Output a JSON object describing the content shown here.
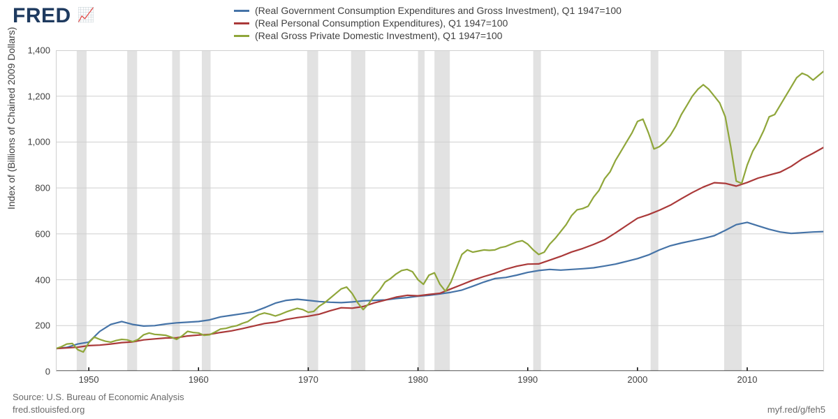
{
  "logo": {
    "text": "FRED",
    "glyph": "📈"
  },
  "legend": {
    "items": [
      {
        "label": "(Real Government Consumption Expenditures and Gross Investment), Q1 1947=100",
        "color": "#4573a7"
      },
      {
        "label": "(Real Personal Consumption Expenditures), Q1 1947=100",
        "color": "#aa3939"
      },
      {
        "label": "(Real Gross Private Domestic Investment), Q1 1947=100",
        "color": "#8fa63a"
      }
    ]
  },
  "chart": {
    "type": "line",
    "background_color": "#ffffff",
    "grid_color": "#cfcfcf",
    "axis_color": "#000000",
    "recession_fill": "#e2e2e2",
    "ylabel": "Index of (Billions of Chained 2009 Dollars)",
    "label_fontsize": 14,
    "tick_fontsize": 13,
    "line_width": 2.2,
    "xlim": [
      1947,
      2017
    ],
    "ylim": [
      0,
      1400
    ],
    "xticks": [
      1950,
      1960,
      1970,
      1980,
      1990,
      2000,
      2010
    ],
    "yticks": [
      0,
      200,
      400,
      600,
      800,
      1000,
      1200,
      1400
    ],
    "ytick_labels": [
      "0",
      "200",
      "400",
      "600",
      "800",
      "1,000",
      "1,200",
      "1,400"
    ],
    "recessions": [
      [
        1948.9,
        1949.8
      ],
      [
        1953.5,
        1954.4
      ],
      [
        1957.6,
        1958.3
      ],
      [
        1960.3,
        1961.1
      ],
      [
        1969.9,
        1970.9
      ],
      [
        1973.9,
        1975.2
      ],
      [
        1980.0,
        1980.6
      ],
      [
        1981.5,
        1982.9
      ],
      [
        1990.5,
        1991.2
      ],
      [
        2001.2,
        2001.9
      ],
      [
        2007.9,
        2009.5
      ]
    ],
    "series": [
      {
        "name": "gov",
        "color": "#4573a7",
        "points": [
          [
            1947,
            100
          ],
          [
            1948,
            105
          ],
          [
            1949,
            120
          ],
          [
            1950,
            128
          ],
          [
            1951,
            175
          ],
          [
            1952,
            205
          ],
          [
            1953,
            218
          ],
          [
            1954,
            205
          ],
          [
            1955,
            198
          ],
          [
            1956,
            200
          ],
          [
            1957,
            207
          ],
          [
            1958,
            212
          ],
          [
            1959,
            215
          ],
          [
            1960,
            218
          ],
          [
            1961,
            225
          ],
          [
            1962,
            238
          ],
          [
            1963,
            245
          ],
          [
            1964,
            252
          ],
          [
            1965,
            260
          ],
          [
            1966,
            278
          ],
          [
            1967,
            298
          ],
          [
            1968,
            310
          ],
          [
            1969,
            315
          ],
          [
            1970,
            310
          ],
          [
            1971,
            305
          ],
          [
            1972,
            302
          ],
          [
            1973,
            300
          ],
          [
            1974,
            303
          ],
          [
            1975,
            308
          ],
          [
            1976,
            310
          ],
          [
            1977,
            312
          ],
          [
            1978,
            318
          ],
          [
            1979,
            322
          ],
          [
            1980,
            328
          ],
          [
            1981,
            332
          ],
          [
            1982,
            338
          ],
          [
            1983,
            345
          ],
          [
            1984,
            355
          ],
          [
            1985,
            372
          ],
          [
            1986,
            390
          ],
          [
            1987,
            405
          ],
          [
            1988,
            410
          ],
          [
            1989,
            420
          ],
          [
            1990,
            432
          ],
          [
            1991,
            440
          ],
          [
            1992,
            445
          ],
          [
            1993,
            442
          ],
          [
            1994,
            445
          ],
          [
            1995,
            448
          ],
          [
            1996,
            452
          ],
          [
            1997,
            460
          ],
          [
            1998,
            468
          ],
          [
            1999,
            480
          ],
          [
            2000,
            492
          ],
          [
            2001,
            508
          ],
          [
            2002,
            530
          ],
          [
            2003,
            548
          ],
          [
            2004,
            560
          ],
          [
            2005,
            570
          ],
          [
            2006,
            580
          ],
          [
            2007,
            592
          ],
          [
            2008,
            615
          ],
          [
            2009,
            640
          ],
          [
            2010,
            650
          ],
          [
            2011,
            635
          ],
          [
            2012,
            620
          ],
          [
            2013,
            608
          ],
          [
            2014,
            602
          ],
          [
            2015,
            605
          ],
          [
            2016,
            608
          ],
          [
            2017,
            610
          ]
        ]
      },
      {
        "name": "pce",
        "color": "#aa3939",
        "points": [
          [
            1947,
            100
          ],
          [
            1948,
            103
          ],
          [
            1949,
            106
          ],
          [
            1950,
            113
          ],
          [
            1951,
            115
          ],
          [
            1952,
            120
          ],
          [
            1953,
            126
          ],
          [
            1954,
            129
          ],
          [
            1955,
            138
          ],
          [
            1956,
            142
          ],
          [
            1957,
            146
          ],
          [
            1958,
            147
          ],
          [
            1959,
            155
          ],
          [
            1960,
            159
          ],
          [
            1961,
            162
          ],
          [
            1962,
            170
          ],
          [
            1963,
            177
          ],
          [
            1964,
            187
          ],
          [
            1965,
            198
          ],
          [
            1966,
            209
          ],
          [
            1967,
            215
          ],
          [
            1968,
            227
          ],
          [
            1969,
            235
          ],
          [
            1970,
            241
          ],
          [
            1971,
            250
          ],
          [
            1972,
            265
          ],
          [
            1973,
            278
          ],
          [
            1974,
            276
          ],
          [
            1975,
            283
          ],
          [
            1976,
            299
          ],
          [
            1977,
            311
          ],
          [
            1978,
            324
          ],
          [
            1979,
            332
          ],
          [
            1980,
            330
          ],
          [
            1981,
            336
          ],
          [
            1982,
            341
          ],
          [
            1983,
            360
          ],
          [
            1984,
            379
          ],
          [
            1985,
            398
          ],
          [
            1986,
            414
          ],
          [
            1987,
            428
          ],
          [
            1988,
            446
          ],
          [
            1989,
            459
          ],
          [
            1990,
            468
          ],
          [
            1991,
            469
          ],
          [
            1992,
            485
          ],
          [
            1993,
            502
          ],
          [
            1994,
            521
          ],
          [
            1995,
            536
          ],
          [
            1996,
            554
          ],
          [
            1997,
            574
          ],
          [
            1998,
            604
          ],
          [
            1999,
            636
          ],
          [
            2000,
            668
          ],
          [
            2001,
            684
          ],
          [
            2002,
            703
          ],
          [
            2003,
            725
          ],
          [
            2004,
            753
          ],
          [
            2005,
            780
          ],
          [
            2006,
            804
          ],
          [
            2007,
            823
          ],
          [
            2008,
            820
          ],
          [
            2009,
            808
          ],
          [
            2010,
            824
          ],
          [
            2011,
            843
          ],
          [
            2012,
            856
          ],
          [
            2013,
            869
          ],
          [
            2014,
            894
          ],
          [
            2015,
            926
          ],
          [
            2016,
            951
          ],
          [
            2017,
            978
          ]
        ]
      },
      {
        "name": "inv",
        "color": "#8fa63a",
        "points": [
          [
            1947,
            100
          ],
          [
            1947.5,
            108
          ],
          [
            1948,
            120
          ],
          [
            1948.5,
            122
          ],
          [
            1949,
            95
          ],
          [
            1949.5,
            85
          ],
          [
            1950,
            125
          ],
          [
            1950.5,
            150
          ],
          [
            1951,
            140
          ],
          [
            1951.5,
            132
          ],
          [
            1952,
            128
          ],
          [
            1952.5,
            135
          ],
          [
            1953,
            140
          ],
          [
            1953.5,
            138
          ],
          [
            1954,
            130
          ],
          [
            1954.5,
            140
          ],
          [
            1955,
            160
          ],
          [
            1955.5,
            168
          ],
          [
            1956,
            162
          ],
          [
            1956.5,
            160
          ],
          [
            1957,
            158
          ],
          [
            1957.5,
            150
          ],
          [
            1958,
            140
          ],
          [
            1958.5,
            155
          ],
          [
            1959,
            175
          ],
          [
            1959.5,
            170
          ],
          [
            1960,
            168
          ],
          [
            1960.5,
            158
          ],
          [
            1961,
            160
          ],
          [
            1961.5,
            172
          ],
          [
            1962,
            185
          ],
          [
            1962.5,
            188
          ],
          [
            1963,
            195
          ],
          [
            1963.5,
            200
          ],
          [
            1964,
            210
          ],
          [
            1964.5,
            218
          ],
          [
            1965,
            235
          ],
          [
            1965.5,
            248
          ],
          [
            1966,
            255
          ],
          [
            1966.5,
            250
          ],
          [
            1967,
            242
          ],
          [
            1967.5,
            250
          ],
          [
            1968,
            260
          ],
          [
            1968.5,
            268
          ],
          [
            1969,
            275
          ],
          [
            1969.5,
            270
          ],
          [
            1970,
            258
          ],
          [
            1970.5,
            262
          ],
          [
            1971,
            285
          ],
          [
            1971.5,
            300
          ],
          [
            1972,
            320
          ],
          [
            1972.5,
            340
          ],
          [
            1973,
            360
          ],
          [
            1973.5,
            368
          ],
          [
            1974,
            340
          ],
          [
            1974.5,
            300
          ],
          [
            1975,
            270
          ],
          [
            1975.5,
            295
          ],
          [
            1976,
            330
          ],
          [
            1976.5,
            355
          ],
          [
            1977,
            390
          ],
          [
            1977.5,
            405
          ],
          [
            1978,
            425
          ],
          [
            1978.5,
            440
          ],
          [
            1979,
            445
          ],
          [
            1979.5,
            435
          ],
          [
            1980,
            400
          ],
          [
            1980.5,
            380
          ],
          [
            1981,
            420
          ],
          [
            1981.5,
            430
          ],
          [
            1982,
            380
          ],
          [
            1982.5,
            350
          ],
          [
            1983,
            390
          ],
          [
            1983.5,
            450
          ],
          [
            1984,
            510
          ],
          [
            1984.5,
            530
          ],
          [
            1985,
            520
          ],
          [
            1985.5,
            525
          ],
          [
            1986,
            530
          ],
          [
            1986.5,
            528
          ],
          [
            1987,
            530
          ],
          [
            1987.5,
            540
          ],
          [
            1988,
            545
          ],
          [
            1988.5,
            555
          ],
          [
            1989,
            565
          ],
          [
            1989.5,
            570
          ],
          [
            1990,
            555
          ],
          [
            1990.5,
            530
          ],
          [
            1991,
            510
          ],
          [
            1991.5,
            520
          ],
          [
            1992,
            555
          ],
          [
            1992.5,
            580
          ],
          [
            1993,
            610
          ],
          [
            1993.5,
            640
          ],
          [
            1994,
            680
          ],
          [
            1994.5,
            705
          ],
          [
            1995,
            710
          ],
          [
            1995.5,
            720
          ],
          [
            1996,
            760
          ],
          [
            1996.5,
            790
          ],
          [
            1997,
            840
          ],
          [
            1997.5,
            870
          ],
          [
            1998,
            920
          ],
          [
            1998.5,
            960
          ],
          [
            1999,
            1000
          ],
          [
            1999.5,
            1040
          ],
          [
            2000,
            1090
          ],
          [
            2000.5,
            1100
          ],
          [
            2001,
            1040
          ],
          [
            2001.5,
            970
          ],
          [
            2002,
            980
          ],
          [
            2002.5,
            1000
          ],
          [
            2003,
            1030
          ],
          [
            2003.5,
            1070
          ],
          [
            2004,
            1120
          ],
          [
            2004.5,
            1160
          ],
          [
            2005,
            1200
          ],
          [
            2005.5,
            1230
          ],
          [
            2006,
            1250
          ],
          [
            2006.5,
            1230
          ],
          [
            2007,
            1200
          ],
          [
            2007.5,
            1170
          ],
          [
            2008,
            1110
          ],
          [
            2008.5,
            980
          ],
          [
            2009,
            830
          ],
          [
            2009.5,
            820
          ],
          [
            2010,
            900
          ],
          [
            2010.5,
            960
          ],
          [
            2011,
            1000
          ],
          [
            2011.5,
            1050
          ],
          [
            2012,
            1110
          ],
          [
            2012.5,
            1120
          ],
          [
            2013,
            1160
          ],
          [
            2013.5,
            1200
          ],
          [
            2014,
            1240
          ],
          [
            2014.5,
            1280
          ],
          [
            2015,
            1300
          ],
          [
            2015.5,
            1290
          ],
          [
            2016,
            1270
          ],
          [
            2016.5,
            1290
          ],
          [
            2017,
            1310
          ]
        ]
      }
    ]
  },
  "footer": {
    "source": "Source: U.S. Bureau of Economic Analysis",
    "site": "fred.stlouisfed.org",
    "shortlink": "myf.red/g/feh5"
  }
}
